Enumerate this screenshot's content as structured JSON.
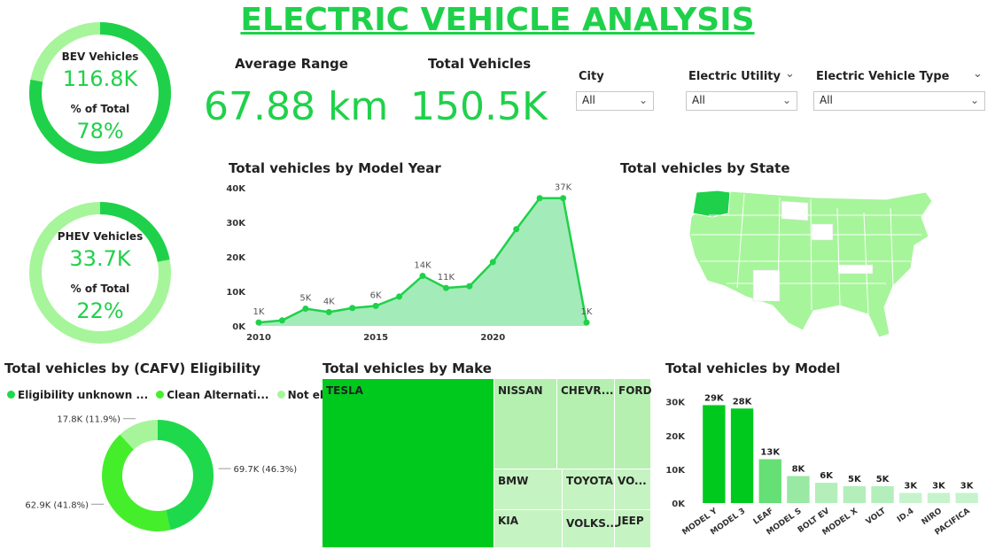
{
  "page_title": "ELECTRIC VEHICLE ANALYSIS",
  "bev": {
    "label": "BEV Vehicles",
    "value": "116.8K",
    "pct_label": "% of Total",
    "pct": "78%",
    "fraction": 0.78
  },
  "phev": {
    "label": "PHEV Vehicles",
    "value": "33.7K",
    "pct_label": "% of Total",
    "pct": "22%",
    "fraction": 0.22
  },
  "kpis": {
    "avg_range_label": "Average Range",
    "avg_range_value": "67.88 km",
    "total_vehicles_label": "Total Vehicles",
    "total_vehicles_value": "150.5K"
  },
  "slicers": {
    "city": {
      "label": "City",
      "value": "All"
    },
    "utility": {
      "label": "Electric Utility",
      "value": "All"
    },
    "type": {
      "label": "Electric Vehicle Type",
      "value": "All"
    }
  },
  "colors": {
    "accent": "#1fd14a",
    "light": "#a6f59a",
    "dark_green": "#00c91e",
    "area_fill": "#a3ebb8"
  },
  "chart_data": [
    {
      "type": "area",
      "title": "Total vehicles by Model Year",
      "x": [
        2010,
        2011,
        2012,
        2013,
        2014,
        2015,
        2016,
        2017,
        2018,
        2019,
        2020,
        2021,
        2022,
        2023,
        2024
      ],
      "values": [
        1000,
        1600,
        5000,
        4000,
        5200,
        5800,
        8500,
        14500,
        11000,
        11500,
        18500,
        28000,
        37000,
        37000,
        1000
      ],
      "point_labels": [
        "1K",
        "",
        "5K",
        "4K",
        "",
        "6K",
        "",
        "14K",
        "11K",
        "",
        "",
        "",
        "",
        "37K",
        "1K"
      ],
      "x_ticks": [
        "2010",
        "2015",
        "2020"
      ],
      "y_ticks": [
        "0K",
        "10K",
        "20K",
        "30K",
        "40K"
      ],
      "ylim": [
        0,
        40000
      ]
    },
    {
      "type": "map",
      "title": "Total vehicles by State",
      "highlight": "Washington"
    },
    {
      "type": "pie",
      "title": "Total vehicles by (CAFV) Eligibility",
      "legend": [
        "Eligibility unknown ...",
        "Clean Alternati...",
        "Not eligible ..."
      ],
      "values": [
        69.7,
        62.9,
        17.8
      ],
      "labels": [
        "69.7K (46.3%)",
        "62.9K (41.8%)",
        "17.8K (11.9%)"
      ],
      "colors": [
        "#1ed94c",
        "#45ee2a",
        "#a6f59a"
      ]
    },
    {
      "type": "treemap",
      "title": "Total vehicles by Make",
      "items": [
        "TESLA",
        "NISSAN",
        "CHEVR...",
        "FORD",
        "BMW",
        "TOYOTA",
        "VO...",
        "KIA",
        "VOLKS...",
        "JEEP"
      ]
    },
    {
      "type": "bar",
      "title": "Total vehicles by Model",
      "categories": [
        "MODEL Y",
        "MODEL 3",
        "LEAF",
        "MODEL S",
        "BOLT EV",
        "MODEL X",
        "VOLT",
        "ID.4",
        "NIRO",
        "PACIFICA"
      ],
      "values": [
        29000,
        28000,
        13000,
        8000,
        6000,
        5000,
        5000,
        3000,
        3000,
        3000
      ],
      "labels": [
        "29K",
        "28K",
        "13K",
        "8K",
        "6K",
        "5K",
        "5K",
        "3K",
        "3K",
        "3K"
      ],
      "y_ticks": [
        "0K",
        "10K",
        "20K",
        "30K"
      ],
      "ylim": [
        0,
        32000
      ]
    }
  ]
}
